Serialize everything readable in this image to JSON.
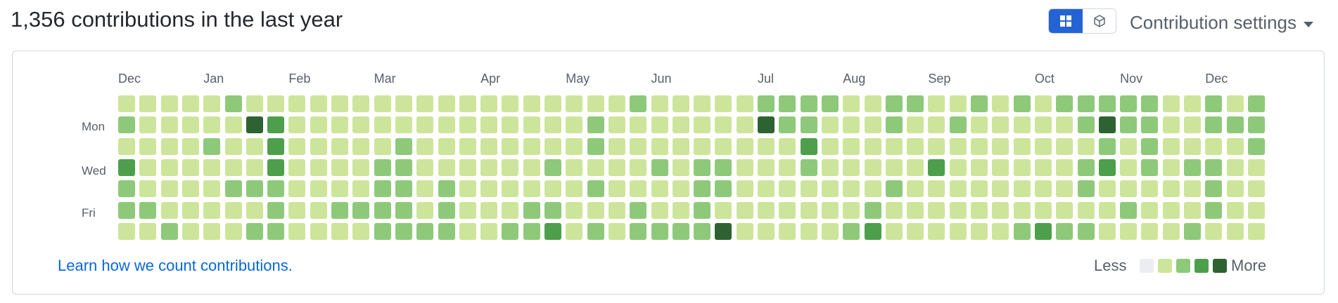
{
  "title": "1,356 contributions in the last year",
  "view_toggle": {
    "grid_icon": "grid-icon",
    "cube_icon": "cube-icon",
    "active": "grid"
  },
  "settings_label": "Contribution settings",
  "months": [
    "Dec",
    "Jan",
    "Feb",
    "Mar",
    "Apr",
    "May",
    "Jun",
    "Jul",
    "Aug",
    "Sep",
    "Oct",
    "Nov",
    "Dec"
  ],
  "month_week_index": [
    0,
    4,
    8,
    12,
    17,
    21,
    25,
    30,
    34,
    38,
    43,
    47,
    51
  ],
  "day_labels": {
    "mon": "Mon",
    "wed": "Wed",
    "fri": "Fri"
  },
  "learn_link": "Learn how we count contributions.",
  "legend": {
    "less": "Less",
    "more": "More"
  },
  "colors": [
    "#ebedf0",
    "#cde59a",
    "#8ec97a",
    "#4e9f4c",
    "#2f6233"
  ],
  "weeks": [
    "1213221",
    "1111121",
    "1111112",
    "1111111",
    "1121111",
    "2111211",
    "1411212",
    "1333222",
    "1111111",
    "1111111",
    "1111121",
    "1111121",
    "1112222",
    "1122222",
    "1111112",
    "1111222",
    "1111111",
    "1111111",
    "1111112",
    "1111122",
    "1112123",
    "1111111",
    "1221212",
    "1111111",
    "2111122",
    "1112112",
    "1111112",
    "1112222",
    "1112214",
    "1111111",
    "2411111",
    "2211111",
    "2232111",
    "2111111",
    "1111112",
    "1111123",
    "2211211",
    "2111111",
    "1113111",
    "1211111",
    "2111111",
    "1111111",
    "2111112",
    "1111113",
    "2111112",
    "2212212",
    "2423111",
    "2211121",
    "2222111",
    "1111111",
    "1112112",
    "2212221",
    "1211111",
    "2221111"
  ]
}
